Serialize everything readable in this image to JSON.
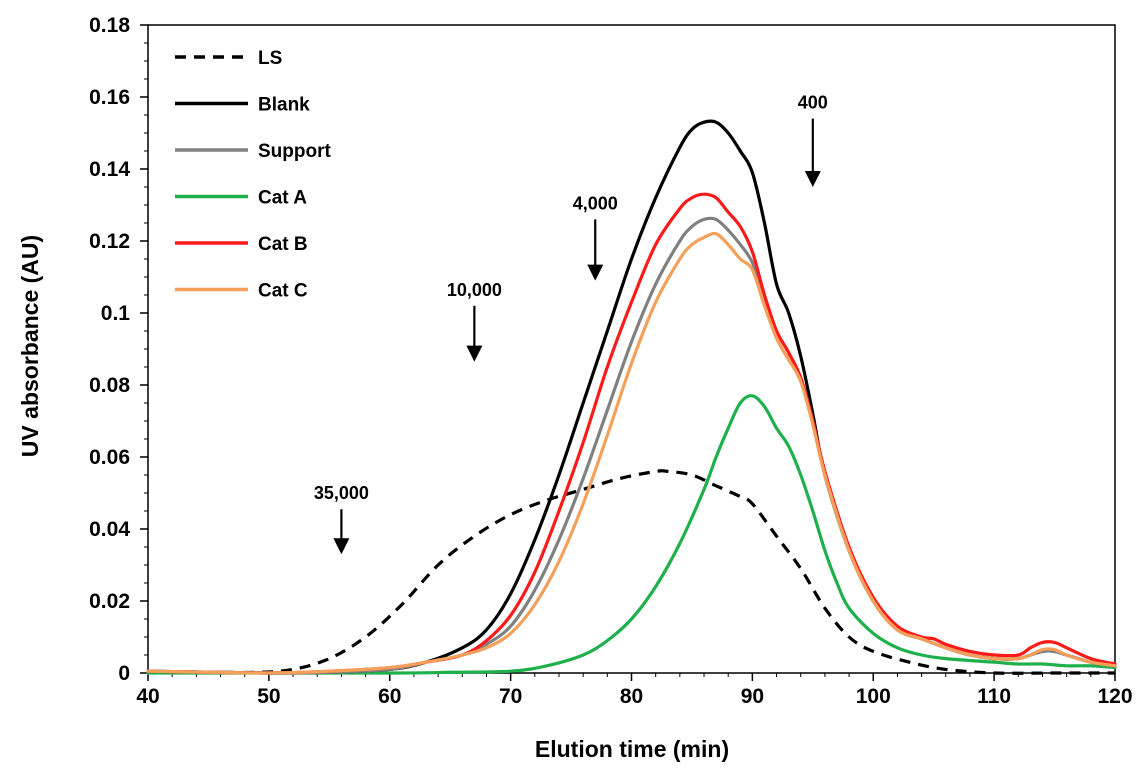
{
  "chart_data": {
    "type": "line",
    "title": "",
    "xlabel": "Elution time (min)",
    "ylabel": "UV absorbance (AU)",
    "xlim": [
      40,
      120
    ],
    "ylim": [
      0,
      0.18
    ],
    "x_ticks": [
      40,
      50,
      60,
      70,
      80,
      90,
      100,
      110,
      120
    ],
    "y_ticks": [
      0,
      0.02,
      0.04,
      0.06,
      0.08,
      0.1,
      0.12,
      0.14,
      0.16,
      0.18
    ],
    "x_tick_labels": [
      "40",
      "50",
      "60",
      "70",
      "80",
      "90",
      "100",
      "110",
      "120"
    ],
    "y_tick_labels": [
      "0",
      "0.02",
      "0.04",
      "0.06",
      "0.08",
      "0.1",
      "0.12",
      "0.14",
      "0.16",
      "0.18"
    ],
    "grid": false,
    "legend_position": "top-left",
    "series": [
      {
        "name": "LS",
        "color": "#000000",
        "dashed": true,
        "x": [
          40,
          45,
          49,
          52,
          55,
          58,
          61,
          64,
          67,
          70,
          73,
          76,
          79,
          82,
          83,
          85,
          87,
          89,
          90,
          92,
          94,
          96,
          98,
          100,
          103,
          106,
          110,
          115,
          120
        ],
        "y": [
          0.0005,
          0.0002,
          0.0002,
          0.001,
          0.004,
          0.01,
          0.019,
          0.03,
          0.038,
          0.044,
          0.048,
          0.051,
          0.054,
          0.056,
          0.056,
          0.055,
          0.052,
          0.049,
          0.047,
          0.038,
          0.029,
          0.018,
          0.01,
          0.006,
          0.003,
          0.001,
          0.0,
          0.0,
          0.0
        ]
      },
      {
        "name": "Blank",
        "color": "#000000",
        "dashed": false,
        "x": [
          40,
          50,
          55,
          60,
          63,
          66,
          68,
          70,
          72,
          74,
          76,
          78,
          80,
          82,
          84,
          85,
          86,
          87,
          88,
          89,
          90,
          91,
          92,
          93,
          94,
          95,
          96,
          98,
          100,
          102,
          104,
          106,
          108,
          110,
          112,
          113,
          114,
          115,
          116,
          118,
          120
        ],
        "y": [
          0.0005,
          0.0,
          0.0002,
          0.001,
          0.003,
          0.007,
          0.012,
          0.022,
          0.037,
          0.055,
          0.075,
          0.095,
          0.115,
          0.132,
          0.146,
          0.151,
          0.153,
          0.153,
          0.15,
          0.145,
          0.139,
          0.125,
          0.108,
          0.1,
          0.088,
          0.072,
          0.055,
          0.034,
          0.02,
          0.012,
          0.0095,
          0.007,
          0.005,
          0.004,
          0.004,
          0.005,
          0.006,
          0.006,
          0.005,
          0.003,
          0.002
        ]
      },
      {
        "name": "Support",
        "color": "#808080",
        "dashed": false,
        "x": [
          40,
          50,
          55,
          60,
          63,
          66,
          68,
          70,
          72,
          74,
          76,
          78,
          80,
          82,
          84,
          85,
          86,
          87,
          88,
          89,
          90,
          91,
          92,
          93,
          94,
          95,
          96,
          98,
          100,
          102,
          104,
          106,
          108,
          110,
          112,
          113,
          114,
          115,
          116,
          118,
          120
        ],
        "y": [
          0.0005,
          0.0,
          0.0002,
          0.001,
          0.003,
          0.005,
          0.008,
          0.013,
          0.023,
          0.037,
          0.054,
          0.073,
          0.092,
          0.108,
          0.12,
          0.124,
          0.126,
          0.126,
          0.123,
          0.119,
          0.114,
          0.104,
          0.095,
          0.089,
          0.082,
          0.07,
          0.055,
          0.034,
          0.02,
          0.012,
          0.0095,
          0.007,
          0.005,
          0.004,
          0.004,
          0.005,
          0.006,
          0.006,
          0.005,
          0.003,
          0.002
        ]
      },
      {
        "name": "Cat A",
        "color": "#1db04b",
        "dashed": false,
        "x": [
          40,
          60,
          65,
          70,
          73,
          76,
          78,
          80,
          82,
          84,
          86,
          87,
          88,
          89,
          90,
          91,
          92,
          93,
          94,
          95,
          96,
          97,
          98,
          100,
          102,
          104,
          106,
          110,
          112,
          114,
          116,
          118,
          120
        ],
        "y": [
          0.0,
          0.0,
          0.0002,
          0.0005,
          0.002,
          0.005,
          0.009,
          0.015,
          0.024,
          0.036,
          0.051,
          0.06,
          0.068,
          0.075,
          0.077,
          0.074,
          0.068,
          0.063,
          0.055,
          0.045,
          0.034,
          0.025,
          0.018,
          0.011,
          0.007,
          0.005,
          0.004,
          0.003,
          0.0025,
          0.0025,
          0.002,
          0.002,
          0.0015
        ]
      },
      {
        "name": "Cat B",
        "color": "#ff1a1a",
        "dashed": false,
        "x": [
          40,
          50,
          55,
          60,
          63,
          66,
          68,
          70,
          72,
          74,
          76,
          78,
          80,
          82,
          84,
          85,
          86,
          87,
          88,
          89,
          90,
          91,
          92,
          93,
          94,
          95,
          96,
          98,
          100,
          102,
          104,
          105,
          106,
          108,
          110,
          112,
          113,
          114,
          115,
          116,
          118,
          120
        ],
        "y": [
          0.0005,
          0.0,
          0.0005,
          0.0015,
          0.003,
          0.005,
          0.009,
          0.016,
          0.028,
          0.045,
          0.064,
          0.085,
          0.103,
          0.119,
          0.129,
          0.132,
          0.133,
          0.132,
          0.128,
          0.124,
          0.117,
          0.105,
          0.095,
          0.089,
          0.082,
          0.07,
          0.056,
          0.035,
          0.021,
          0.013,
          0.01,
          0.0095,
          0.008,
          0.006,
          0.005,
          0.005,
          0.007,
          0.0085,
          0.0085,
          0.007,
          0.004,
          0.0025
        ]
      },
      {
        "name": "Cat C",
        "color": "#f5a05a",
        "dashed": false,
        "x": [
          40,
          50,
          55,
          60,
          63,
          66,
          68,
          70,
          72,
          74,
          76,
          78,
          80,
          82,
          84,
          85,
          86,
          87,
          88,
          89,
          90,
          91,
          92,
          93,
          94,
          95,
          96,
          98,
          100,
          102,
          104,
          106,
          108,
          110,
          112,
          113,
          114,
          115,
          116,
          118,
          120
        ],
        "y": [
          0.0005,
          0.0,
          0.0005,
          0.0015,
          0.003,
          0.005,
          0.007,
          0.011,
          0.019,
          0.031,
          0.047,
          0.066,
          0.086,
          0.103,
          0.115,
          0.119,
          0.121,
          0.122,
          0.119,
          0.115,
          0.112,
          0.102,
          0.093,
          0.087,
          0.081,
          0.069,
          0.055,
          0.034,
          0.02,
          0.012,
          0.0095,
          0.007,
          0.005,
          0.004,
          0.004,
          0.005,
          0.0065,
          0.0065,
          0.005,
          0.003,
          0.002
        ]
      }
    ],
    "annotations": [
      {
        "label": "35,000",
        "x": 56,
        "y_top": 0.0455,
        "y_bottom": 0.033
      },
      {
        "label": "10,000",
        "x": 67,
        "y_top": 0.102,
        "y_bottom": 0.0865
      },
      {
        "label": "4,000",
        "x": 77,
        "y_top": 0.126,
        "y_bottom": 0.109
      },
      {
        "label": "400",
        "x": 95,
        "y_top": 0.154,
        "y_bottom": 0.135
      }
    ]
  }
}
